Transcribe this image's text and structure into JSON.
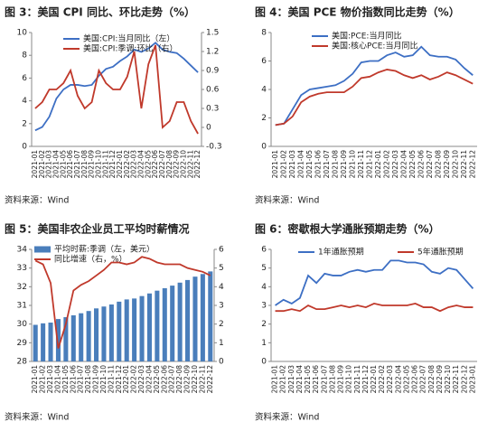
{
  "chart_data": [
    {
      "type": "line",
      "title": "图 3：美国 CPI 同比、环比走势（%）",
      "source": "资料来源：Wind",
      "categories": [
        "2021-01",
        "2021-02",
        "2021-03",
        "2021-04",
        "2021-05",
        "2021-06",
        "2021-07",
        "2021-08",
        "2021-09",
        "2021-10",
        "2021-11",
        "2021-12",
        "2022-01",
        "2022-02",
        "2022-03",
        "2022-04",
        "2022-05",
        "2022-06",
        "2022-07",
        "2022-08",
        "2022-09",
        "2022-10",
        "2022-11",
        "2022-12"
      ],
      "ylim": [
        0,
        10
      ],
      "yticks": [
        0,
        2,
        4,
        6,
        8,
        10
      ],
      "y2lim": [
        -0.3,
        1.5
      ],
      "y2ticks": [
        -0.3,
        0,
        0.3,
        0.6,
        0.9,
        1.2,
        1.5
      ],
      "series": [
        {
          "name": "美国:CPI:当月同比（左）",
          "color": "#3d6fc4",
          "values": [
            1.4,
            1.7,
            2.6,
            4.2,
            5.0,
            5.4,
            5.4,
            5.3,
            5.4,
            6.2,
            6.8,
            7.0,
            7.5,
            7.9,
            8.5,
            8.3,
            8.6,
            9.1,
            8.5,
            8.3,
            8.2,
            7.7,
            7.1,
            6.5
          ]
        },
        {
          "name": "美国:CPI:季调:环比（右）",
          "color": "#c0392b",
          "axis": "y2",
          "values": [
            0.3,
            0.4,
            0.6,
            0.6,
            0.7,
            0.9,
            0.5,
            0.3,
            0.4,
            0.9,
            0.7,
            0.6,
            0.6,
            0.8,
            1.2,
            0.3,
            1.0,
            1.3,
            0.0,
            0.1,
            0.4,
            0.4,
            0.1,
            -0.1
          ]
        }
      ]
    },
    {
      "type": "line",
      "title": "图 4：美国 PCE 物价指数同比走势（%）",
      "source": "资料来源：Wind",
      "categories": [
        "2021-01",
        "2021-02",
        "2021-03",
        "2021-04",
        "2021-05",
        "2021-06",
        "2021-07",
        "2021-08",
        "2021-09",
        "2021-10",
        "2021-11",
        "2021-12",
        "2022-01",
        "2022-02",
        "2022-03",
        "2022-04",
        "2022-05",
        "2022-06",
        "2022-07",
        "2022-08",
        "2022-09",
        "2022-10",
        "2022-11",
        "2022-12"
      ],
      "ylim": [
        0,
        8
      ],
      "yticks": [
        0,
        2,
        4,
        6,
        8
      ],
      "series": [
        {
          "name": "美国:PCE:当月同比",
          "color": "#3d6fc4",
          "values": [
            1.5,
            1.6,
            2.6,
            3.6,
            4.0,
            4.1,
            4.2,
            4.3,
            4.6,
            5.1,
            5.9,
            6.0,
            6.0,
            6.4,
            6.6,
            6.3,
            6.4,
            7.0,
            6.4,
            6.3,
            6.3,
            6.1,
            5.5,
            5.0
          ]
        },
        {
          "name": "美国:核心PCE:当月同比",
          "color": "#c0392b",
          "values": [
            1.5,
            1.6,
            2.1,
            3.1,
            3.5,
            3.7,
            3.8,
            3.8,
            3.8,
            4.2,
            4.8,
            4.9,
            5.2,
            5.4,
            5.3,
            5.0,
            4.8,
            5.0,
            4.7,
            4.9,
            5.2,
            5.0,
            4.7,
            4.4
          ]
        }
      ]
    },
    {
      "type": "bar",
      "title": "图 5：美国非农企业员工平均时薪情况",
      "source": "资料来源：Wind",
      "categories": [
        "2021-01",
        "2021-02",
        "2021-03",
        "2021-04",
        "2021-05",
        "2021-06",
        "2021-07",
        "2021-08",
        "2021-09",
        "2021-10",
        "2021-11",
        "2021-12",
        "2022-01",
        "2022-02",
        "2022-03",
        "2022-04",
        "2022-05",
        "2022-06",
        "2022-07",
        "2022-08",
        "2022-09",
        "2022-10",
        "2022-11",
        "2022-12"
      ],
      "ylim": [
        28,
        34
      ],
      "yticks": [
        28,
        29,
        30,
        31,
        32,
        33,
        34
      ],
      "y2lim": [
        0,
        6
      ],
      "y2ticks": [
        0,
        1,
        2,
        3,
        4,
        5,
        6
      ],
      "series": [
        {
          "name": "平均时薪:季调（左，美元）",
          "color": "#4a7ebb",
          "type": "bar",
          "values": [
            29.96,
            30.04,
            30.08,
            30.27,
            30.37,
            30.47,
            30.58,
            30.7,
            30.84,
            30.94,
            31.05,
            31.2,
            31.32,
            31.37,
            31.5,
            31.64,
            31.79,
            31.92,
            32.06,
            32.22,
            32.36,
            32.54,
            32.68,
            32.82
          ]
        },
        {
          "name": "同比增速（右，%）",
          "color": "#c0392b",
          "type": "line",
          "axis": "y2",
          "values": [
            5.4,
            5.2,
            4.2,
            0.7,
            2.0,
            3.8,
            4.1,
            4.3,
            4.6,
            4.9,
            5.3,
            5.3,
            5.2,
            5.3,
            5.6,
            5.5,
            5.3,
            5.2,
            5.2,
            5.2,
            5.0,
            4.9,
            4.8,
            4.6
          ]
        }
      ]
    },
    {
      "type": "line",
      "title": "图 6：密歇根大学通胀预期走势（%）",
      "source": "资料来源：Wind",
      "categories": [
        "2021-01",
        "2021-02",
        "2021-03",
        "2021-04",
        "2021-05",
        "2021-06",
        "2021-07",
        "2021-08",
        "2021-09",
        "2021-10",
        "2021-11",
        "2021-12",
        "2022-01",
        "2022-02",
        "2022-03",
        "2022-04",
        "2022-05",
        "2022-06",
        "2022-07",
        "2022-08",
        "2022-09",
        "2022-10",
        "2022-11",
        "2022-12",
        "2023-01"
      ],
      "ylim": [
        0,
        6
      ],
      "yticks": [
        0,
        1,
        2,
        3,
        4,
        5,
        6
      ],
      "series": [
        {
          "name": "1年通胀预期",
          "color": "#3d6fc4",
          "values": [
            3.0,
            3.3,
            3.1,
            3.4,
            4.6,
            4.2,
            4.7,
            4.6,
            4.6,
            4.8,
            4.9,
            4.8,
            4.9,
            4.9,
            5.4,
            5.4,
            5.3,
            5.3,
            5.2,
            4.8,
            4.7,
            5.0,
            4.9,
            4.4,
            3.9
          ]
        },
        {
          "name": "5年通胀预期",
          "color": "#c0392b",
          "values": [
            2.7,
            2.7,
            2.8,
            2.7,
            3.0,
            2.8,
            2.8,
            2.9,
            3.0,
            2.9,
            3.0,
            2.9,
            3.1,
            3.0,
            3.0,
            3.0,
            3.0,
            3.1,
            2.9,
            2.9,
            2.7,
            2.9,
            3.0,
            2.9,
            2.9
          ]
        }
      ]
    }
  ]
}
